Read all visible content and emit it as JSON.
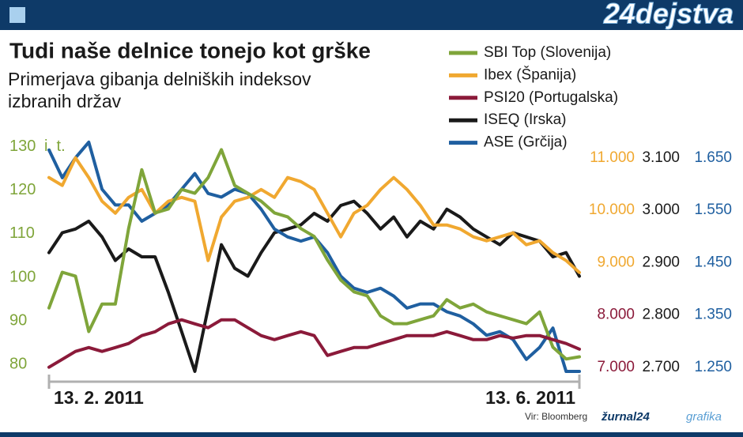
{
  "chart_data": {
    "type": "line",
    "brand": "24dejstva",
    "title": "Tudi naše delnice tonejo kot grške",
    "subtitle": [
      "Primerjava gibanja delniških indeksov",
      "izbranih držav"
    ],
    "y_unit": "i. t.",
    "source": "Vir: Bloomberg",
    "credit_brand": "žurnal24",
    "credit_suffix": "grafika",
    "categories": [
      "13. 2. 2011",
      null,
      null,
      null,
      null,
      null,
      null,
      null,
      null,
      null,
      null,
      null,
      null,
      null,
      null,
      null,
      null,
      null,
      null,
      null,
      null,
      null,
      null,
      null,
      null,
      null,
      null,
      null,
      null,
      null,
      null,
      null,
      null,
      null,
      null,
      null,
      null,
      null,
      null,
      null,
      "13. 6. 2011"
    ],
    "ylim": [
      77,
      135
    ],
    "yticks": [
      80,
      90,
      100,
      110,
      120,
      130
    ],
    "y_tick_color": "#7fa53a",
    "y2lim": [
      6800,
      11630
    ],
    "y3lim": [
      2680,
      3163
    ],
    "y4lim": [
      1230,
      1713
    ],
    "series": [
      {
        "name": "SBI Top (Slovenija)",
        "color": "#7fa53a",
        "axis": "y",
        "values": [
          93.0,
          101.2,
          100.3,
          87.6,
          93.9,
          93.9,
          111.2,
          124.7,
          114.8,
          115.7,
          120.2,
          119.3,
          122.9,
          129.3,
          121.1,
          119.3,
          117.5,
          114.8,
          113.9,
          111.2,
          109.4,
          104.0,
          99.4,
          96.7,
          95.8,
          91.2,
          89.4,
          89.4,
          90.3,
          91.2,
          94.9,
          93.0,
          93.9,
          92.1,
          91.2,
          90.3,
          89.4,
          92.1,
          84.0,
          81.3,
          81.8
        ]
      },
      {
        "name": "Ibex (Španija)",
        "color": "#f0a830",
        "axis": "y2",
        "ticks": [
          {
            "value": 9000,
            "label": "9.000"
          },
          {
            "value": 10000,
            "label": "10.000"
          },
          {
            "value": 11000,
            "label": "11.000"
          }
        ],
        "values": [
          10623,
          10472,
          11000,
          10623,
          10170,
          9943,
          10245,
          10396,
          9943,
          10170,
          10245,
          10170,
          9038,
          9868,
          10170,
          10245,
          10396,
          10245,
          10623,
          10547,
          10396,
          9943,
          9491,
          9943,
          10094,
          10396,
          10623,
          10396,
          10094,
          9717,
          9717,
          9642,
          9491,
          9415,
          9491,
          9566,
          9340,
          9415,
          9189,
          9038,
          8811
        ]
      },
      {
        "name": "PSI20 (Portugalska)",
        "color": "#8b1a3a",
        "axis": "y2",
        "ticks": [
          {
            "value": 7000,
            "label": "7.000"
          },
          {
            "value": 8000,
            "label": "8.000"
          }
        ],
        "values": [
          7000,
          7151,
          7302,
          7377,
          7302,
          7377,
          7453,
          7604,
          7679,
          7830,
          7906,
          7830,
          7755,
          7906,
          7906,
          7755,
          7604,
          7528,
          7604,
          7679,
          7604,
          7226,
          7302,
          7377,
          7377,
          7453,
          7528,
          7604,
          7604,
          7604,
          7679,
          7604,
          7528,
          7528,
          7604,
          7558,
          7604,
          7604,
          7528,
          7453,
          7347
        ]
      },
      {
        "name": "ISEQ (Irska)",
        "color": "#1a1a1a",
        "axis": "y3",
        "ticks": [
          {
            "value": 2700,
            "label": "2.700"
          },
          {
            "value": 2800,
            "label": "2.800"
          },
          {
            "value": 2900,
            "label": "2.900"
          },
          {
            "value": 3000,
            "label": "3.000"
          },
          {
            "value": 3100,
            "label": "3.100"
          }
        ],
        "values": [
          2919,
          2957,
          2964,
          2979,
          2949,
          2904,
          2926,
          2911,
          2911,
          2843,
          2768,
          2692,
          2813,
          2934,
          2889,
          2874,
          2919,
          2957,
          2964,
          2972,
          2994,
          2979,
          3009,
          3017,
          2994,
          2964,
          2987,
          2949,
          2979,
          2964,
          3002,
          2987,
          2964,
          2949,
          2934,
          2957,
          2949,
          2941,
          2911,
          2919,
          2874
        ]
      },
      {
        "name": "ASE (Grčija)",
        "color": "#1f5fa0",
        "axis": "y4",
        "ticks": [
          {
            "value": 1250,
            "label": "1.250"
          },
          {
            "value": 1350,
            "label": "1.350"
          },
          {
            "value": 1450,
            "label": "1.450"
          },
          {
            "value": 1550,
            "label": "1.550"
          },
          {
            "value": 1650,
            "label": "1.650"
          }
        ],
        "values": [
          1665,
          1612,
          1650,
          1680,
          1590,
          1560,
          1560,
          1529,
          1544,
          1560,
          1590,
          1620,
          1582,
          1575,
          1590,
          1582,
          1552,
          1514,
          1499,
          1491,
          1499,
          1469,
          1424,
          1401,
          1393,
          1401,
          1386,
          1363,
          1371,
          1371,
          1356,
          1348,
          1333,
          1311,
          1318,
          1303,
          1265,
          1288,
          1325,
          1242,
          1242
        ]
      }
    ]
  }
}
